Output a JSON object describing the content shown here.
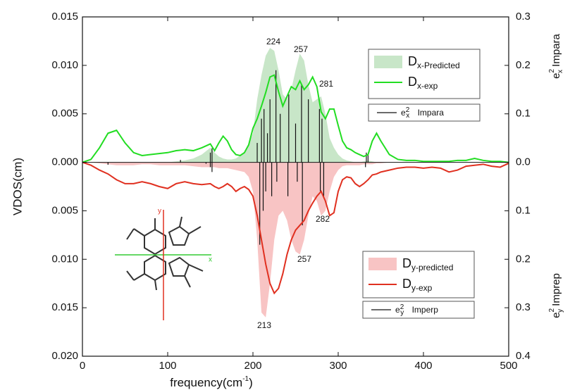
{
  "chart_data": {
    "type": "mirrored_vdos",
    "ylabel": "VDOS(cm)",
    "xlabel": [
      "frequency(cm",
      "-1",
      ")"
    ],
    "y2label_top": [
      "e",
      "2",
      "x",
      " Impara"
    ],
    "y2label_bottom": [
      "e",
      "2",
      "y",
      " Imprep"
    ],
    "xlim": [
      0,
      500
    ],
    "xticks": [
      0,
      100,
      200,
      300,
      400,
      500
    ],
    "ylim": [
      -0.02,
      0.015
    ],
    "yticks": [
      {
        "value": -0.02,
        "label": "0.020"
      },
      {
        "value": -0.015,
        "label": "0.015"
      },
      {
        "value": -0.01,
        "label": "0.010"
      },
      {
        "value": -0.005,
        "label": "0.005"
      },
      {
        "value": 0,
        "label": "0.000"
      },
      0.005,
      {
        "value": 0.01,
        "label": "0.010"
      },
      0.015
    ],
    "y2lim": [
      -0.4,
      0.3
    ],
    "y2ticks": [
      {
        "value": -0.4,
        "label": "0.4"
      },
      {
        "value": -0.3,
        "label": "0.3"
      },
      {
        "value": -0.2,
        "label": "0.2"
      },
      {
        "value": -0.1,
        "label": "0.1"
      },
      {
        "value": 0,
        "label": "0.0"
      },
      0.1,
      0.2,
      0.3
    ],
    "x": [
      0,
      10,
      20,
      30,
      40,
      50,
      60,
      70,
      80,
      90,
      100,
      110,
      120,
      130,
      140,
      150,
      155,
      160,
      165,
      170,
      175,
      180,
      185,
      190,
      195,
      200,
      205,
      210,
      215,
      220,
      225,
      230,
      235,
      240,
      245,
      250,
      255,
      260,
      265,
      270,
      275,
      280,
      285,
      290,
      295,
      300,
      305,
      310,
      315,
      320,
      325,
      330,
      335,
      340,
      345,
      350,
      360,
      370,
      380,
      390,
      400,
      410,
      420,
      430,
      440,
      450,
      460,
      470,
      480,
      490,
      500
    ],
    "series": [
      {
        "name": [
          "D",
          "x-Predicted"
        ],
        "kind": "area",
        "color": "#c8e6c8",
        "values": [
          0,
          0,
          0,
          0,
          0,
          0,
          0,
          0,
          0,
          0,
          0,
          0.0001,
          0.0002,
          0.0004,
          0.0008,
          0.0015,
          0.001,
          0.0006,
          0.0004,
          0.0003,
          0.0003,
          0.0004,
          0.0007,
          0.001,
          0.0018,
          0.003,
          0.0065,
          0.009,
          0.011,
          0.0118,
          0.0115,
          0.0095,
          0.007,
          0.0065,
          0.0075,
          0.0095,
          0.0112,
          0.0105,
          0.008,
          0.0062,
          0.0065,
          0.0068,
          0.005,
          0.0025,
          0.0015,
          0.0008,
          0.0004,
          0.0002,
          0.0001,
          0,
          0,
          0.0001,
          0.0002,
          0.0001,
          0,
          0,
          0,
          0,
          0,
          0,
          0,
          0,
          0,
          0,
          0,
          0,
          0,
          0,
          0,
          0,
          0
        ]
      },
      {
        "name": [
          "D",
          "x-exp"
        ],
        "kind": "line",
        "color": "#22dd22",
        "values": [
          0,
          0.0003,
          0.0015,
          0.003,
          0.0033,
          0.002,
          0.001,
          0.0007,
          0.0008,
          0.0009,
          0.001,
          0.0012,
          0.0013,
          0.0012,
          0.0015,
          0.0019,
          0.0012,
          0.002,
          0.0027,
          0.0022,
          0.0013,
          0.0008,
          0.0007,
          0.001,
          0.0018,
          0.0035,
          0.0045,
          0.0058,
          0.0072,
          0.0088,
          0.009,
          0.0073,
          0.0058,
          0.0068,
          0.0078,
          0.0075,
          0.0084,
          0.0075,
          0.008,
          0.0088,
          0.0078,
          0.0052,
          0.0045,
          0.0055,
          0.0055,
          0.0038,
          0.0022,
          0.0015,
          0.0013,
          0.001,
          0.0008,
          0.0006,
          0.0008,
          0.0022,
          0.003,
          0.0022,
          0.0008,
          0.0003,
          0.0002,
          0.0002,
          0.0001,
          0.0001,
          0.0001,
          0.0001,
          0.0002,
          0.0002,
          0.0004,
          0.0002,
          0.0001,
          0.0001,
          0
        ]
      },
      {
        "name": [
          "e",
          "2",
          "x",
          " Impara"
        ],
        "kind": "sticks",
        "axis": "y2",
        "color": "#111",
        "x": [
          115,
          150,
          152,
          205,
          210,
          213,
          217,
          220,
          227,
          232,
          242,
          250,
          257,
          265,
          278,
          281,
          333,
          335
        ],
        "values": [
          0.005,
          0.02,
          0.029,
          0.04,
          0.09,
          0.11,
          0.06,
          0.13,
          0.19,
          0.1,
          0.14,
          0.08,
          0.16,
          0.13,
          0.11,
          0.09,
          0.02,
          0.015
        ]
      },
      {
        "name": [
          "D",
          "y-predicted"
        ],
        "kind": "area",
        "color": "#f8c4c4",
        "values": [
          0,
          0,
          -0.0001,
          -0.0002,
          -0.0003,
          -0.0003,
          -0.0003,
          -0.0002,
          -0.0002,
          -0.0003,
          -0.0003,
          -0.0003,
          -0.0003,
          -0.0004,
          -0.0005,
          -0.0005,
          -0.0005,
          -0.0006,
          -0.0006,
          -0.0006,
          -0.0007,
          -0.0008,
          -0.0009,
          -0.001,
          -0.0015,
          -0.003,
          -0.008,
          -0.0155,
          -0.016,
          -0.0125,
          -0.008,
          -0.0055,
          -0.005,
          -0.006,
          -0.008,
          -0.0092,
          -0.0095,
          -0.008,
          -0.0055,
          -0.0035,
          -0.004,
          -0.0055,
          -0.005,
          -0.003,
          -0.0015,
          -0.0008,
          -0.0004,
          -0.0003,
          -0.0003,
          -0.0003,
          -0.0003,
          -0.0002,
          -0.0002,
          -0.0002,
          -0.0001,
          -0.0001,
          0,
          0,
          0,
          0,
          0,
          0,
          0,
          0,
          0,
          0,
          0,
          0,
          0,
          0,
          0
        ]
      },
      {
        "name": [
          "D",
          "y-exp"
        ],
        "kind": "line",
        "color": "#e03020",
        "values": [
          0,
          -0.0003,
          -0.0008,
          -0.0012,
          -0.0018,
          -0.0022,
          -0.0022,
          -0.002,
          -0.0022,
          -0.0025,
          -0.0027,
          -0.0022,
          -0.002,
          -0.0022,
          -0.0023,
          -0.0022,
          -0.0025,
          -0.0027,
          -0.0025,
          -0.0022,
          -0.0025,
          -0.003,
          -0.0027,
          -0.0025,
          -0.0028,
          -0.0035,
          -0.0055,
          -0.008,
          -0.0105,
          -0.0125,
          -0.0135,
          -0.013,
          -0.0115,
          -0.0095,
          -0.008,
          -0.007,
          -0.0065,
          -0.006,
          -0.005,
          -0.0042,
          -0.0035,
          -0.003,
          -0.004,
          -0.0055,
          -0.0052,
          -0.003,
          -0.0018,
          -0.0015,
          -0.0016,
          -0.0022,
          -0.0025,
          -0.0022,
          -0.0018,
          -0.0013,
          -0.0012,
          -0.001,
          -0.0008,
          -0.0006,
          -0.0005,
          -0.0005,
          -0.0006,
          -0.0005,
          -0.0006,
          -0.001,
          -0.0008,
          -0.0004,
          -0.0003,
          -0.0002,
          -0.0004,
          -0.0005,
          -0.0001
        ]
      },
      {
        "name": [
          "e",
          "2",
          "y",
          " Imperp"
        ],
        "kind": "sticks",
        "axis": "y2",
        "color": "#111",
        "x": [
          30,
          145,
          150,
          152,
          208,
          212,
          215,
          222,
          228,
          241,
          252,
          258,
          279,
          283,
          332
        ],
        "values": [
          -0.005,
          -0.003,
          -0.01,
          -0.02,
          -0.17,
          -0.1,
          -0.06,
          -0.07,
          -0.04,
          -0.07,
          -0.04,
          -0.13,
          -0.06,
          -0.07,
          -0.01
        ]
      }
    ],
    "annotations": [
      "224",
      "257",
      "281",
      "282",
      "257",
      "213"
    ],
    "inset_labels": [
      "x",
      "y"
    ]
  }
}
